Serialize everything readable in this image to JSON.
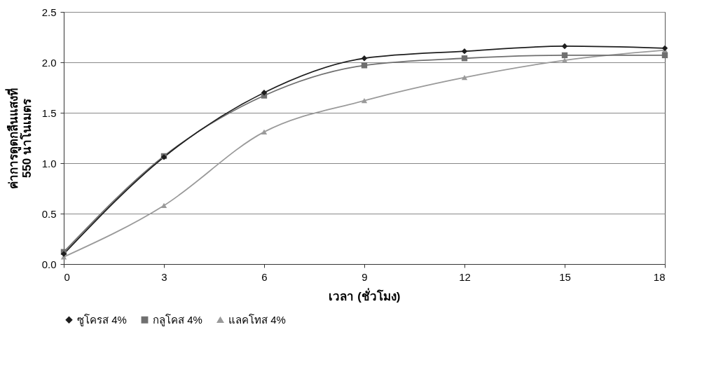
{
  "chart_data": {
    "type": "line",
    "xlabel": "เวลา (ชั่วโมง)",
    "ylabel": "ค่าการดูดกลืนแสงที่\n550 นาโนเมตร",
    "x": [
      0,
      3,
      6,
      9,
      12,
      15,
      18
    ],
    "series": [
      {
        "name": "ซูโครส 4%",
        "color": "#1e1e1e",
        "marker": "diamond",
        "values": [
          0.1,
          1.06,
          1.7,
          2.04,
          2.11,
          2.16,
          2.14
        ]
      },
      {
        "name": "กลูโคส 4%",
        "color": "#707070",
        "marker": "square",
        "values": [
          0.12,
          1.07,
          1.67,
          1.97,
          2.04,
          2.07,
          2.07
        ]
      },
      {
        "name": "แลคโทส   4%",
        "color": "#9a9a9a",
        "marker": "triangle",
        "values": [
          0.07,
          0.58,
          1.31,
          1.62,
          1.85,
          2.02,
          2.12
        ]
      }
    ],
    "xlim": [
      0,
      18
    ],
    "xticks": [
      0,
      3,
      6,
      9,
      12,
      15,
      18
    ],
    "ylim": [
      0,
      2.5
    ],
    "yticks": [
      {
        "value": 0,
        "label": "0.0"
      },
      {
        "value": 0.5,
        "label": "0.5"
      },
      {
        "value": 1,
        "label": "1.0"
      },
      {
        "value": 1.5,
        "label": "1.5"
      },
      {
        "value": 2,
        "label": "2.0"
      },
      {
        "value": 2.5,
        "label": "2.5"
      }
    ],
    "grid": "y",
    "legend": "bottom"
  }
}
